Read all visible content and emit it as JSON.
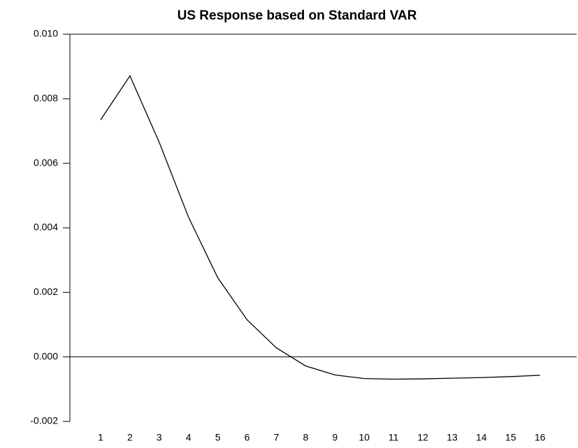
{
  "chart_data": {
    "type": "line",
    "title": "US Response based on Standard VAR",
    "x": [
      1,
      2,
      3,
      4,
      5,
      6,
      7,
      8,
      9,
      10,
      11,
      12,
      13,
      14,
      15,
      16
    ],
    "values": [
      0.00735,
      0.00871,
      0.00665,
      0.00433,
      0.00245,
      0.00115,
      0.00028,
      -0.00028,
      -0.00056,
      -0.00067,
      -0.00069,
      -0.00068,
      -0.00066,
      -0.00064,
      -0.00061,
      -0.00057
    ],
    "color": "#000000",
    "xlim": [
      -0.05,
      17.25
    ],
    "xticks": [
      1,
      2,
      3,
      4,
      5,
      6,
      7,
      8,
      9,
      10,
      11,
      12,
      13,
      14,
      15,
      16
    ],
    "ylim": [
      -0.002,
      0.01
    ],
    "yticks": [
      {
        "value": -0.002,
        "label": "-0.002"
      },
      {
        "value": 0,
        "label": "0.000"
      },
      {
        "value": 0.002,
        "label": "0.002"
      },
      {
        "value": 0.004,
        "label": "0.004"
      },
      {
        "value": 0.006,
        "label": "0.006"
      },
      {
        "value": 0.008,
        "label": "0.008"
      },
      {
        "value": 0.01,
        "label": "0.010"
      }
    ],
    "zero_line": true
  }
}
